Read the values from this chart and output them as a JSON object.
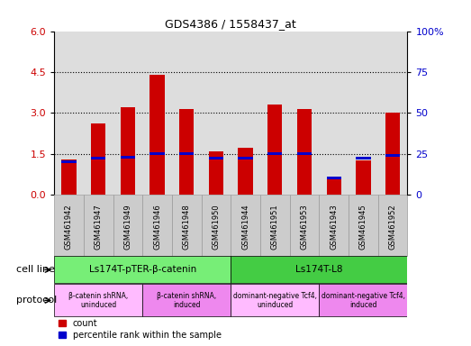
{
  "title": "GDS4386 / 1558437_at",
  "samples": [
    "GSM461942",
    "GSM461947",
    "GSM461949",
    "GSM461946",
    "GSM461948",
    "GSM461950",
    "GSM461944",
    "GSM461951",
    "GSM461953",
    "GSM461943",
    "GSM461945",
    "GSM461952"
  ],
  "counts": [
    1.3,
    2.6,
    3.2,
    4.4,
    3.15,
    1.6,
    1.7,
    3.3,
    3.15,
    0.55,
    1.25,
    3.0
  ],
  "percentile_ranks": [
    20,
    22,
    23,
    25,
    25,
    22,
    22,
    25,
    25,
    10,
    22,
    24
  ],
  "bar_color": "#cc0000",
  "pct_color": "#0000cc",
  "ylim_left": [
    0,
    6
  ],
  "ylim_right": [
    0,
    100
  ],
  "yticks_left": [
    0,
    1.5,
    3.0,
    4.5,
    6.0
  ],
  "yticks_right": [
    0,
    25,
    50,
    75,
    100
  ],
  "cell_line_groups": [
    {
      "label": "Ls174T-pTER-β-catenin",
      "start": 0,
      "end": 6,
      "color": "#77ee77"
    },
    {
      "label": "Ls174T-L8",
      "start": 6,
      "end": 12,
      "color": "#44cc44"
    }
  ],
  "protocol_groups": [
    {
      "label": "β-catenin shRNA,\nuninduced",
      "start": 0,
      "end": 3,
      "color": "#ffbbff"
    },
    {
      "label": "β-catenin shRNA,\ninduced",
      "start": 3,
      "end": 6,
      "color": "#ee88ee"
    },
    {
      "label": "dominant-negative Tcf4,\nuninduced",
      "start": 6,
      "end": 9,
      "color": "#ffbbff"
    },
    {
      "label": "dominant-negative Tcf4,\ninduced",
      "start": 9,
      "end": 12,
      "color": "#ee88ee"
    }
  ],
  "cell_line_label": "cell line",
  "protocol_label": "protocol",
  "legend_count": "count",
  "legend_pct": "percentile rank within the sample",
  "bg_color": "#ffffff",
  "plot_bg_color": "#dddddd",
  "tick_label_color_left": "#cc0000",
  "tick_label_color_right": "#0000cc",
  "bar_width": 0.5
}
